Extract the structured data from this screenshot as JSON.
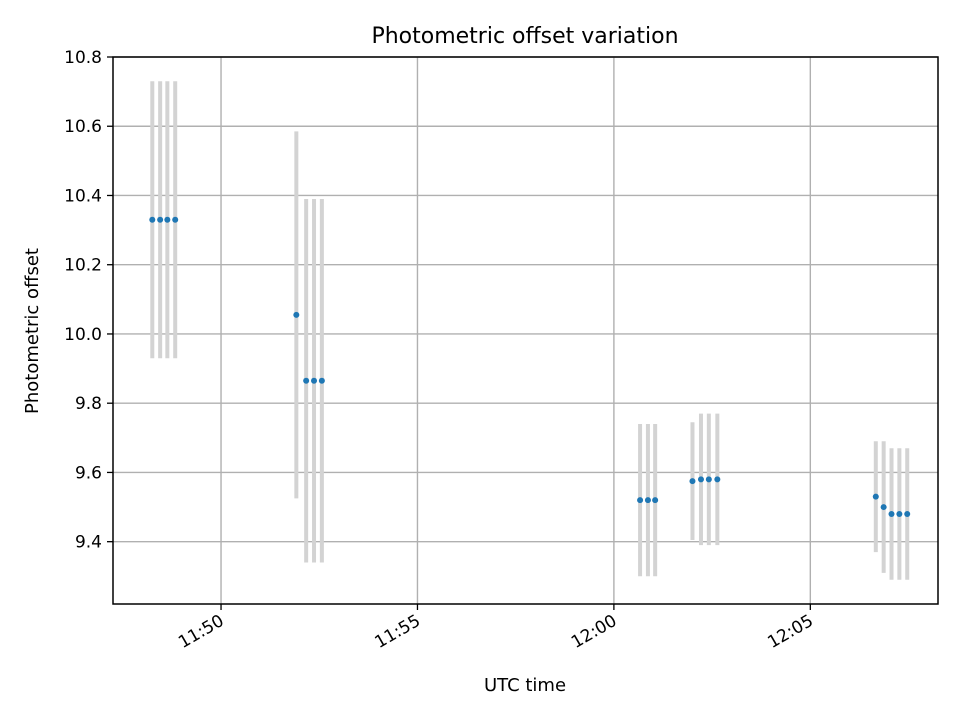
{
  "chart_data": {
    "type": "scatter",
    "title": "Photometric offset variation",
    "xlabel": "UTC time",
    "ylabel": "Photometric offset",
    "xlim": [
      "11:47:15",
      "12:08:15"
    ],
    "ylim": [
      9.22,
      10.8
    ],
    "x_ticks": [
      "11:50",
      "11:55",
      "12:00",
      "12:05"
    ],
    "y_ticks": [
      9.4,
      9.6,
      9.8,
      10.0,
      10.2,
      10.4,
      10.6,
      10.8
    ],
    "grid": true,
    "colors": {
      "points": "#1f77b4",
      "error_bars": "#d3d3d3"
    },
    "series": [
      {
        "x": [
          "11:48:15",
          "11:48:27",
          "11:48:38",
          "11:48:50",
          "11:51:55",
          "11:52:10",
          "11:52:22",
          "11:52:34",
          "12:00:40",
          "12:00:52",
          "12:01:03",
          "12:02:00",
          "12:02:13",
          "12:02:25",
          "12:02:38",
          "12:06:40",
          "12:06:52",
          "12:07:04",
          "12:07:16",
          "12:07:28"
        ],
        "y": [
          10.33,
          10.33,
          10.33,
          10.33,
          10.055,
          9.865,
          9.865,
          9.865,
          9.52,
          9.52,
          9.52,
          9.575,
          9.58,
          9.58,
          9.58,
          9.53,
          9.5,
          9.48,
          9.48,
          9.48
        ],
        "yerr": [
          0.4,
          0.4,
          0.4,
          0.4,
          0.53,
          0.525,
          0.525,
          0.525,
          0.22,
          0.22,
          0.22,
          0.17,
          0.19,
          0.19,
          0.19,
          0.16,
          0.19,
          0.19,
          0.19,
          0.19
        ]
      }
    ]
  }
}
